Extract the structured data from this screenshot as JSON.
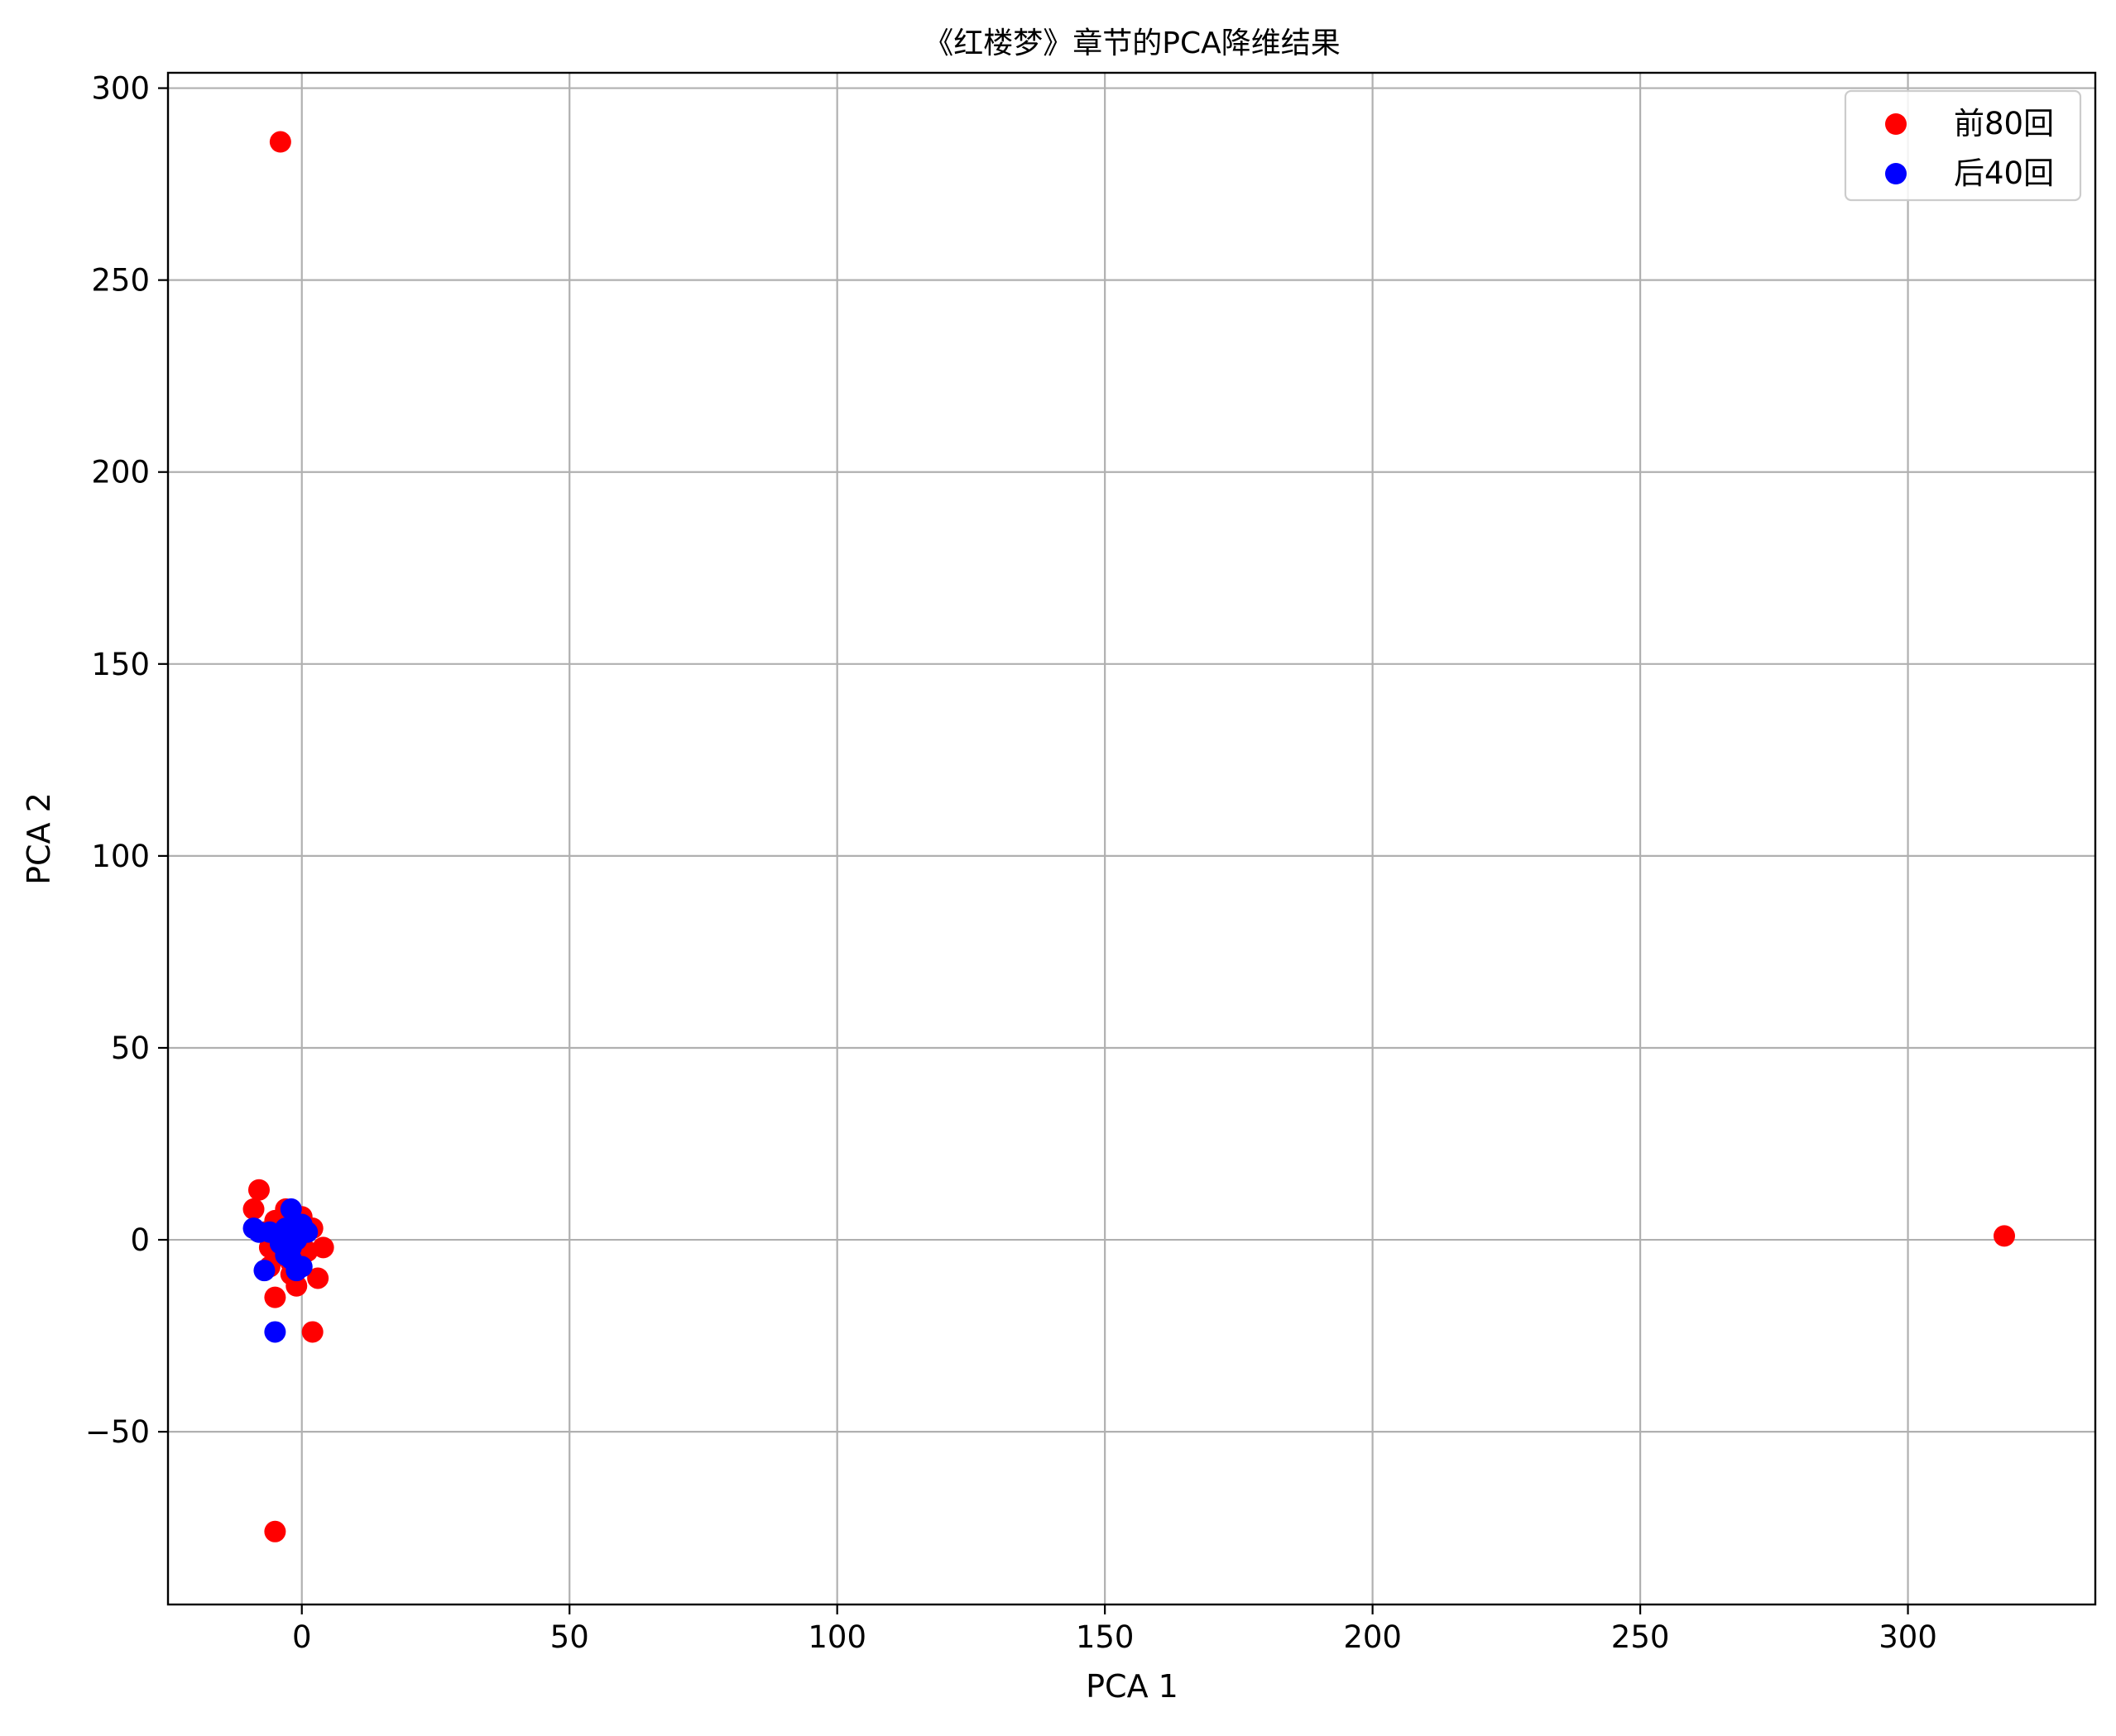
{
  "chart_data": {
    "type": "scatter",
    "title": "《红楼梦》章节的PCA降维结果",
    "xlabel": "PCA 1",
    "ylabel": "PCA 2",
    "xlim": [
      -25,
      335
    ],
    "ylim": [
      -95,
      304
    ],
    "xticks": [
      0,
      50,
      100,
      150,
      200,
      250,
      300
    ],
    "xtick_labels": [
      "0",
      "50",
      "100",
      "150",
      "200",
      "250",
      "300"
    ],
    "yticks": [
      -50,
      0,
      50,
      100,
      150,
      200,
      250,
      300
    ],
    "ytick_labels": [
      "−50",
      "0",
      "50",
      "100",
      "150",
      "200",
      "250",
      "300"
    ],
    "grid": true,
    "legend_position": "top-right",
    "series": [
      {
        "name": "前80回",
        "color": "#ff0000",
        "points": [
          [
            -4,
            286
          ],
          [
            318,
            1
          ],
          [
            -5,
            -76
          ],
          [
            -8,
            13
          ],
          [
            -9,
            8
          ],
          [
            2,
            -24
          ],
          [
            -5,
            -15
          ],
          [
            -1,
            -12
          ],
          [
            3,
            -10
          ],
          [
            4,
            -2
          ],
          [
            -6,
            -2
          ],
          [
            -3,
            4
          ],
          [
            -2,
            -6
          ],
          [
            0,
            6
          ],
          [
            -7,
            2
          ],
          [
            -4,
            -4
          ],
          [
            1,
            -3
          ],
          [
            -3,
            8
          ],
          [
            -1,
            1
          ],
          [
            -5,
            5
          ],
          [
            2,
            3
          ],
          [
            -2,
            -9
          ],
          [
            -6,
            -7
          ],
          [
            0,
            -1
          ]
        ]
      },
      {
        "name": "后40回",
        "color": "#0000ff",
        "points": [
          [
            -5,
            -24
          ],
          [
            -9,
            3
          ],
          [
            -7,
            -8
          ],
          [
            -2,
            8
          ],
          [
            -6,
            2
          ],
          [
            0,
            4
          ],
          [
            -1,
            -8
          ],
          [
            -3,
            -4
          ],
          [
            -1,
            0
          ],
          [
            -4,
            -1
          ],
          [
            0,
            -7
          ],
          [
            -2,
            -2
          ],
          [
            -8,
            2
          ],
          [
            -3,
            3
          ],
          [
            1,
            2
          ],
          [
            -2,
            -5
          ]
        ]
      }
    ]
  }
}
